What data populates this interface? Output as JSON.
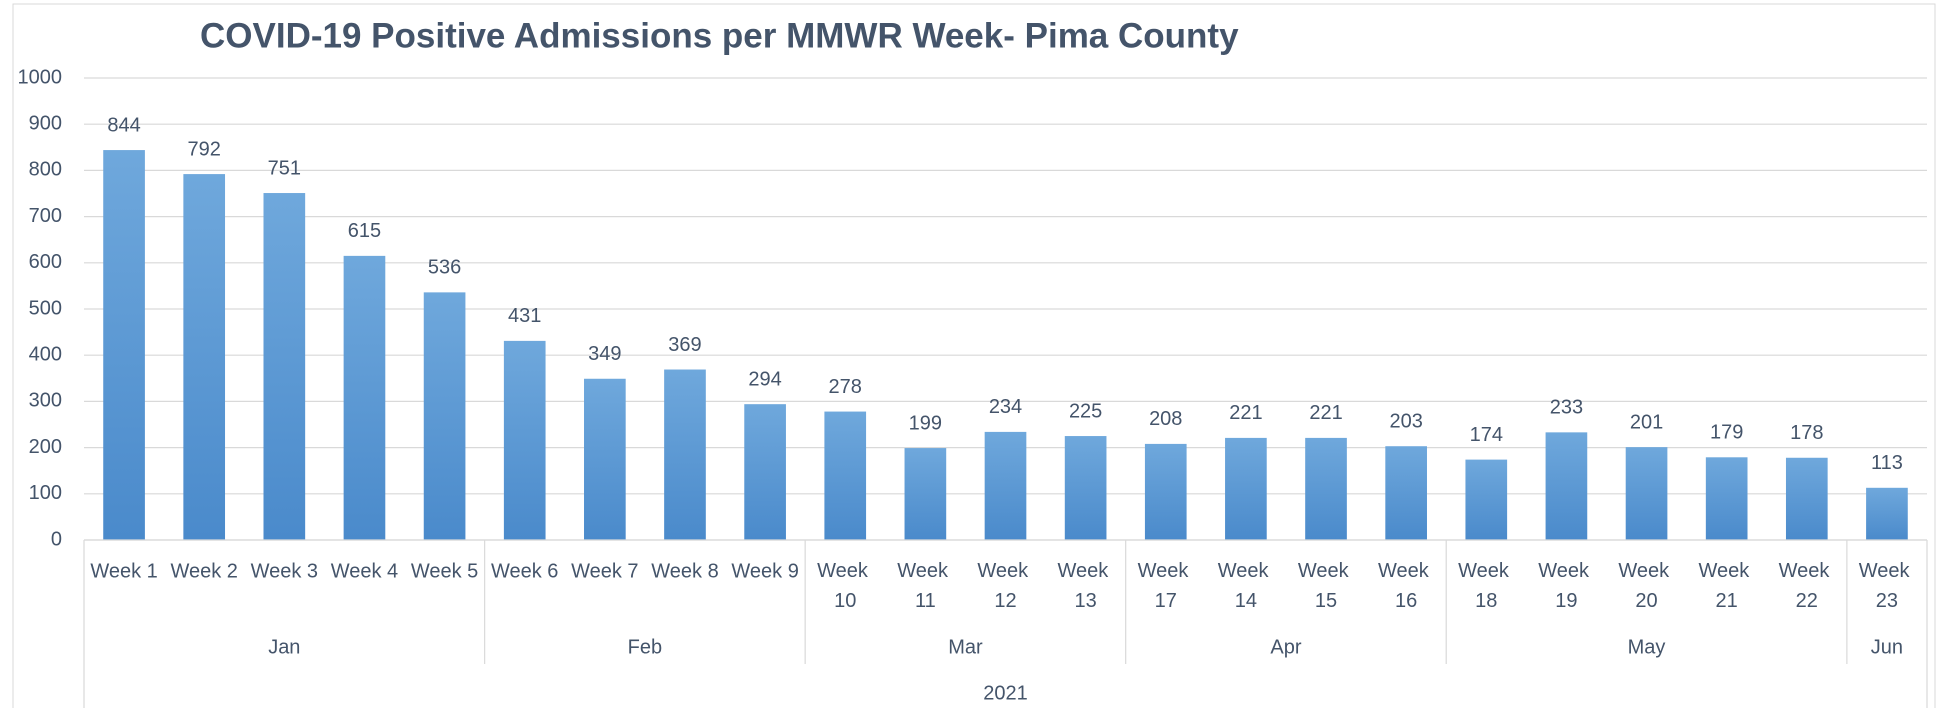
{
  "chart_data": {
    "type": "bar",
    "title": "COVID-19 Positive Admissions per MMWR Week- Pima County",
    "color": "#5b9bd5",
    "ylim": [
      0,
      1000
    ],
    "yticks": [
      0,
      100,
      200,
      300,
      400,
      500,
      600,
      700,
      800,
      900,
      1000
    ],
    "grid": true,
    "groups": [
      {
        "label": "Jan",
        "categories": [
          "Week 1",
          "Week 2",
          "Week 3",
          "Week 4",
          "Week 5"
        ],
        "values": [
          844,
          792,
          751,
          615,
          536
        ]
      },
      {
        "label": "Feb",
        "categories": [
          "Week 6",
          "Week 7",
          "Week 8",
          "Week 9"
        ],
        "values": [
          431,
          349,
          369,
          294
        ]
      },
      {
        "label": "Mar",
        "categories": [
          "Week 10",
          "Week 11",
          "Week 12",
          "Week 13"
        ],
        "values": [
          278,
          199,
          234,
          225
        ]
      },
      {
        "label": "Apr",
        "categories": [
          "Week 17",
          "Week 14",
          "Week 15",
          "Week 16"
        ],
        "values": [
          208,
          221,
          221,
          203
        ]
      },
      {
        "label": "May",
        "categories": [
          "Week 18",
          "Week 19",
          "Week 20",
          "Week 21",
          "Week 22"
        ],
        "values": [
          174,
          233,
          201,
          179,
          178
        ]
      },
      {
        "label": "Jun",
        "categories": [
          "Week 23"
        ],
        "values": [
          113
        ]
      }
    ],
    "year": "2021"
  }
}
